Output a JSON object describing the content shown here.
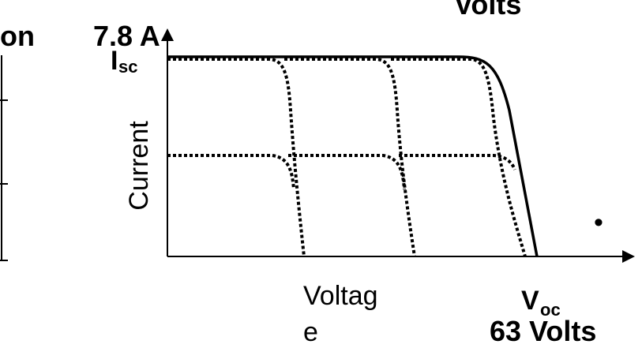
{
  "labels": {
    "left_fragment": "tion",
    "isc_value": "7.8 A",
    "top_fragment": "Volts",
    "isc": {
      "main": "I",
      "sub": "sc"
    },
    "y_axis": "Current",
    "x_axis_lines": [
      "Voltag",
      "e"
    ],
    "voc": {
      "main": "V",
      "sub": "oc"
    },
    "voc_value": "63 Volts",
    "bullet": "•"
  }
}
